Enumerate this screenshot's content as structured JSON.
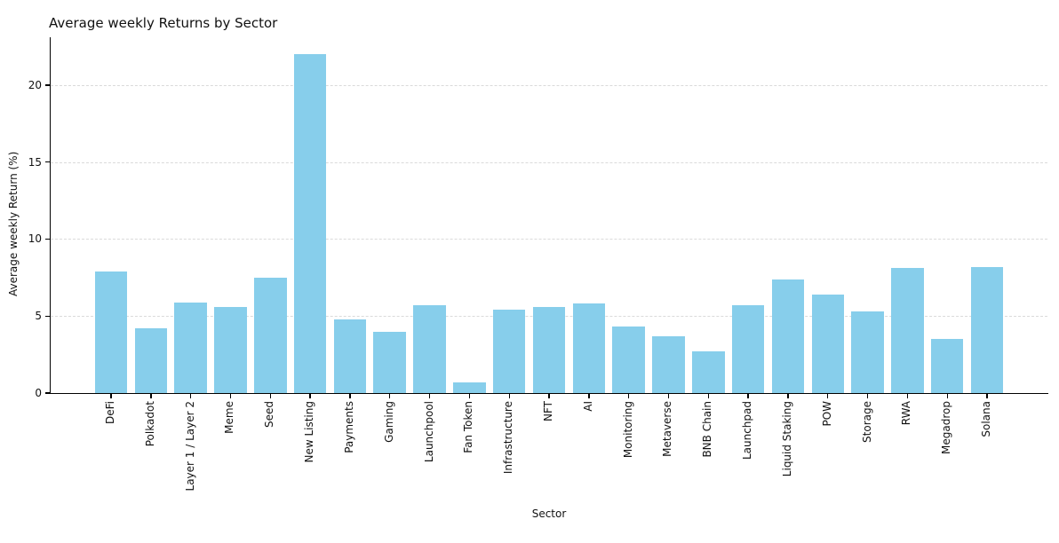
{
  "figure": {
    "background_color": "#ffffff"
  },
  "chart_data": {
    "type": "bar",
    "title": "Average weekly Returns by Sector",
    "xlabel": "Sector",
    "ylabel": "Average weekly Return (%)",
    "categories": [
      "DeFi",
      "Polkadot",
      "Layer 1 / Layer 2",
      "Meme",
      "Seed",
      "New Listing",
      "Payments",
      "Gaming",
      "Launchpool",
      "Fan Token",
      "Infrastructure",
      "NFT",
      "AI",
      "Monitoring",
      "Metaverse",
      "BNB Chain",
      "Launchpad",
      "Liquid Staking",
      "POW",
      "Storage",
      "RWA",
      "Megadrop",
      "Solana"
    ],
    "values": [
      7.9,
      4.2,
      5.9,
      5.6,
      7.5,
      22.0,
      4.8,
      4.0,
      5.7,
      0.7,
      5.4,
      5.6,
      5.8,
      4.3,
      3.7,
      2.7,
      5.7,
      7.4,
      6.4,
      5.3,
      8.1,
      3.5,
      8.2
    ],
    "yticks": [
      0,
      5,
      10,
      15,
      20
    ],
    "ylim": [
      0,
      23.1
    ],
    "bar_color": "#87CEEB",
    "gridline_color": "#dadada",
    "grid_style": "horizontal-dashed",
    "axis_color": "#000000",
    "legend_position": "none",
    "x_tick_label_rotation_deg": 90
  }
}
